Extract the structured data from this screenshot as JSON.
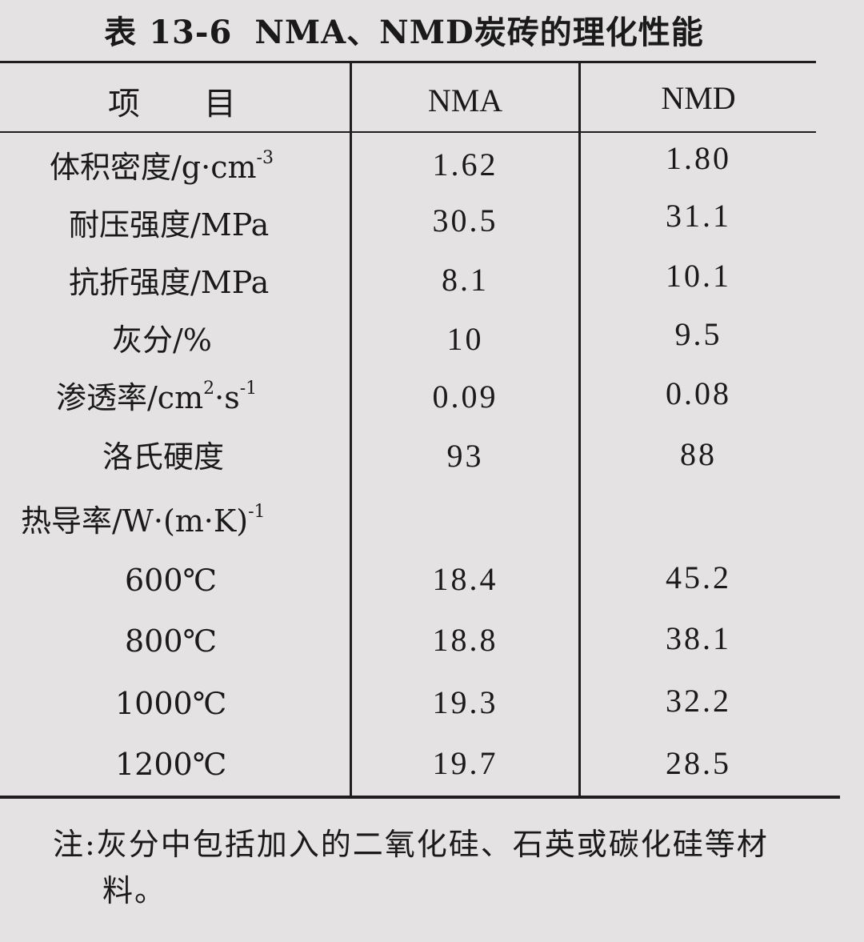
{
  "table": {
    "number": "表 13-6",
    "title": "NMA、NMD炭砖的理化性能",
    "header": {
      "item": "项　　目",
      "col1": "NMA",
      "col2": "NMD"
    },
    "rows": [
      {
        "label": "体积密度/g·cm",
        "sup": "-3",
        "nma": "1.62",
        "nmd": "1.80"
      },
      {
        "label": "耐压强度/MPa",
        "nma": "30.5",
        "nmd": "31.1"
      },
      {
        "label": "抗折强度/MPa",
        "nma": "8.1",
        "nmd": "10.1"
      },
      {
        "label": "灰分/%",
        "nma": "10",
        "nmd": "9.5"
      },
      {
        "label_a": "渗透率/cm",
        "sup_a": "2",
        "label_b": "·s",
        "sup_b": "-1",
        "nma": "0.09",
        "nmd": "0.08"
      },
      {
        "label": "洛氏硬度",
        "nma": "93",
        "nmd": "88"
      },
      {
        "label": "热导率/W·(m·K)",
        "sup": "-1"
      },
      {
        "label": "600℃",
        "nma": "18.4",
        "nmd": "45.2"
      },
      {
        "label": "800℃",
        "nma": "18.8",
        "nmd": "38.1"
      },
      {
        "label": "1000℃",
        "nma": "19.3",
        "nmd": "32.2"
      },
      {
        "label": "1200℃",
        "nma": "19.7",
        "nmd": "28.5"
      }
    ]
  },
  "note": {
    "line1": "注:灰分中包括加入的二氧化硅、石英或碳化硅等材",
    "line2": "料。"
  }
}
